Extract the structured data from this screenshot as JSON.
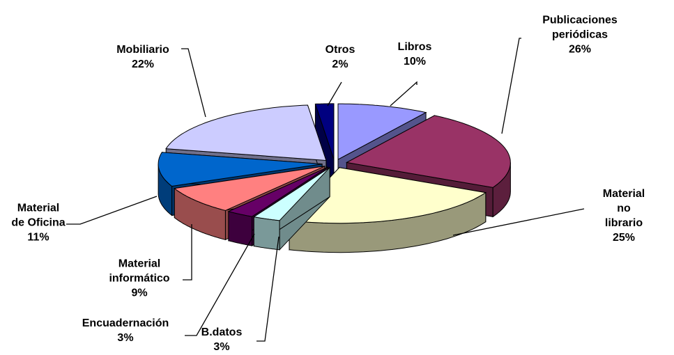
{
  "chart_data": {
    "type": "pie3d",
    "categories": [
      "Libros",
      "Publicaciones\nperiódicas",
      "Material no\nlibrario",
      "B.datos",
      "Encuadernación",
      "Material\ninformático",
      "Material\nde Oficina",
      "Mobiliario",
      "Otros"
    ],
    "values": [
      10,
      26,
      25,
      3,
      3,
      9,
      11,
      22,
      2
    ],
    "value_labels": [
      "10%",
      "26%",
      "25%",
      "3%",
      "3%",
      "9%",
      "11%",
      "22%",
      "2%"
    ],
    "colors": [
      "#9999ff",
      "#993366",
      "#ffffcc",
      "#ccffff",
      "#660066",
      "#ff8080",
      "#0066cc",
      "#ccccff",
      "#000080"
    ]
  }
}
